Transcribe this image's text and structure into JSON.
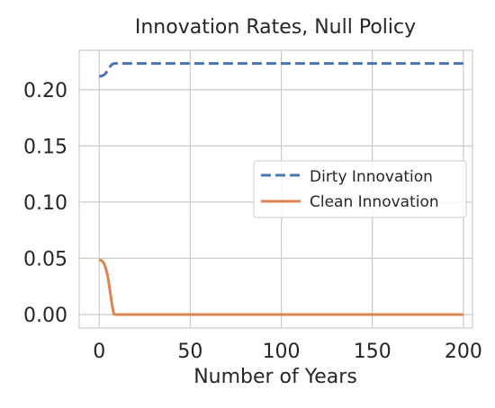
{
  "chart_data": {
    "type": "line",
    "title": "Innovation Rates, Null Policy",
    "xlabel": "Number of Years",
    "ylabel": "",
    "xlim": [
      -11,
      205
    ],
    "ylim": [
      -0.012,
      0.235
    ],
    "xticks": [
      0,
      50,
      100,
      150,
      200
    ],
    "xtick_labels": [
      "0",
      "50",
      "100",
      "150",
      "200"
    ],
    "yticks": [
      0.0,
      0.05,
      0.1,
      0.15,
      0.2
    ],
    "ytick_labels": [
      "0.00",
      "0.05",
      "0.10",
      "0.15",
      "0.20"
    ],
    "grid": true,
    "legend_position": "center-right",
    "series": [
      {
        "name": "Dirty Innovation",
        "color": "#4c72b0",
        "dash": "dashed",
        "x": [
          0,
          1,
          2,
          3,
          4,
          5,
          6,
          7,
          8,
          9,
          10,
          20,
          50,
          100,
          150,
          200
        ],
        "values": [
          0.212,
          0.212,
          0.2125,
          0.2135,
          0.2155,
          0.218,
          0.2205,
          0.2225,
          0.2232,
          0.2233,
          0.2233,
          0.2233,
          0.2233,
          0.2233,
          0.2233,
          0.2233
        ]
      },
      {
        "name": "Clean Innovation",
        "color": "#dd8452",
        "dash": "solid",
        "x": [
          0,
          1,
          2,
          3,
          4,
          5,
          6,
          7,
          8,
          9,
          10,
          20,
          50,
          100,
          150,
          200
        ],
        "values": [
          0.0485,
          0.0483,
          0.047,
          0.044,
          0.039,
          0.031,
          0.02,
          0.009,
          0.0005,
          0.0,
          0.0,
          0.0,
          0.0,
          0.0,
          0.0,
          0.0
        ]
      }
    ]
  }
}
